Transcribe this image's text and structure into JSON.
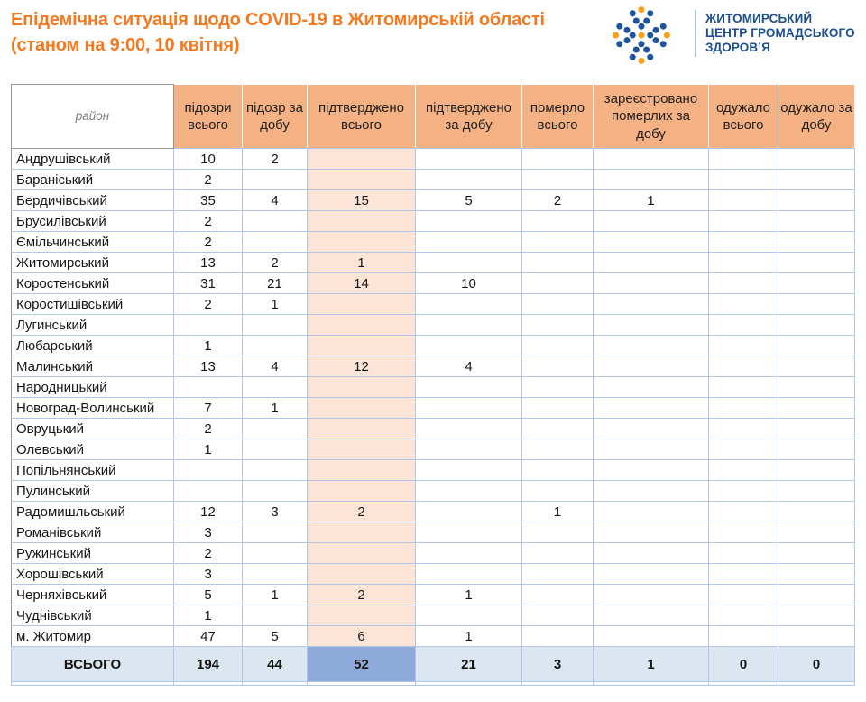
{
  "page": {
    "title_line1": "Епідемічна ситуація щодо COVID-19 в Житомирській області",
    "title_line2": "(станом на 9:00, 10 квітня)"
  },
  "logo": {
    "name_line1": "ЖИТОМИРСЬКИЙ",
    "name_line2": "ЦЕНТР ГРОМАДСЬКОГО",
    "name_line3": "ЗДОРОВ’Я",
    "icon": "dots-cross-logo"
  },
  "colors": {
    "title_orange": "#f5791f",
    "logo_blue": "#1d4f91",
    "logo_dot_blue": "#1e549e",
    "logo_dot_orange": "#f6a21d",
    "header_orange": "#f4b183",
    "confirmed_column_peach": "#fce4d6",
    "total_row_blue": "#dce6f1",
    "total_highlight_blue": "#8eaadb",
    "grid_line": "#b4c6e7"
  },
  "table": {
    "columns": [
      "район",
      "підозри всього",
      "підозр за добу",
      "підтверджено всього",
      "підтверджено за добу",
      "померло всього",
      "зареєстровано померлих за добу",
      "одужало всього",
      "одужало за добу"
    ],
    "rows": [
      {
        "name": "Андрушівський",
        "values": [
          "10",
          "2",
          "",
          "",
          "",
          "",
          "",
          ""
        ]
      },
      {
        "name": "Бараніський",
        "values": [
          "2",
          "",
          "",
          "",
          "",
          "",
          "",
          ""
        ]
      },
      {
        "name": "Бердичівський",
        "values": [
          "35",
          "4",
          "15",
          "5",
          "2",
          "1",
          "",
          ""
        ]
      },
      {
        "name": "Брусилівський",
        "values": [
          "2",
          "",
          "",
          "",
          "",
          "",
          "",
          ""
        ]
      },
      {
        "name": "Ємільчинський",
        "values": [
          "2",
          "",
          "",
          "",
          "",
          "",
          "",
          ""
        ]
      },
      {
        "name": "Житомирський",
        "values": [
          "13",
          "2",
          "1",
          "",
          "",
          "",
          "",
          ""
        ]
      },
      {
        "name": "Коростенський",
        "values": [
          "31",
          "21",
          "14",
          "10",
          "",
          "",
          "",
          ""
        ]
      },
      {
        "name": "Коростишівський",
        "values": [
          "2",
          "1",
          "",
          "",
          "",
          "",
          "",
          ""
        ]
      },
      {
        "name": "Лугинський",
        "values": [
          "",
          "",
          "",
          "",
          "",
          "",
          "",
          ""
        ]
      },
      {
        "name": "Любарський",
        "values": [
          "1",
          "",
          "",
          "",
          "",
          "",
          "",
          ""
        ]
      },
      {
        "name": "Малинський",
        "values": [
          "13",
          "4",
          "12",
          "4",
          "",
          "",
          "",
          ""
        ]
      },
      {
        "name": "Народницький",
        "values": [
          "",
          "",
          "",
          "",
          "",
          "",
          "",
          ""
        ]
      },
      {
        "name": "Новоград-Волинський",
        "values": [
          "7",
          "1",
          "",
          "",
          "",
          "",
          "",
          ""
        ]
      },
      {
        "name": "Овруцький",
        "values": [
          "2",
          "",
          "",
          "",
          "",
          "",
          "",
          ""
        ]
      },
      {
        "name": "Олевський",
        "values": [
          "1",
          "",
          "",
          "",
          "",
          "",
          "",
          ""
        ]
      },
      {
        "name": "Попільнянський",
        "values": [
          "",
          "",
          "",
          "",
          "",
          "",
          "",
          ""
        ]
      },
      {
        "name": "Пулинський",
        "values": [
          "",
          "",
          "",
          "",
          "",
          "",
          "",
          ""
        ]
      },
      {
        "name": "Радомишльський",
        "values": [
          "12",
          "3",
          "2",
          "",
          "1",
          "",
          "",
          ""
        ]
      },
      {
        "name": "Романівський",
        "values": [
          "3",
          "",
          "",
          "",
          "",
          "",
          "",
          ""
        ]
      },
      {
        "name": "Ружинський",
        "values": [
          "2",
          "",
          "",
          "",
          "",
          "",
          "",
          ""
        ]
      },
      {
        "name": "Хорошівський",
        "values": [
          "3",
          "",
          "",
          "",
          "",
          "",
          "",
          ""
        ]
      },
      {
        "name": "Черняхівський",
        "values": [
          "5",
          "1",
          "2",
          "1",
          "",
          "",
          "",
          ""
        ]
      },
      {
        "name": "Чуднівський",
        "values": [
          "1",
          "",
          "",
          "",
          "",
          "",
          "",
          ""
        ]
      },
      {
        "name": "м. Житомир",
        "values": [
          "47",
          "5",
          "6",
          "1",
          "",
          "",
          "",
          ""
        ]
      }
    ],
    "total": {
      "label": "ВСЬОГО",
      "values": [
        "194",
        "44",
        "52",
        "21",
        "3",
        "1",
        "0",
        "0"
      ]
    }
  }
}
